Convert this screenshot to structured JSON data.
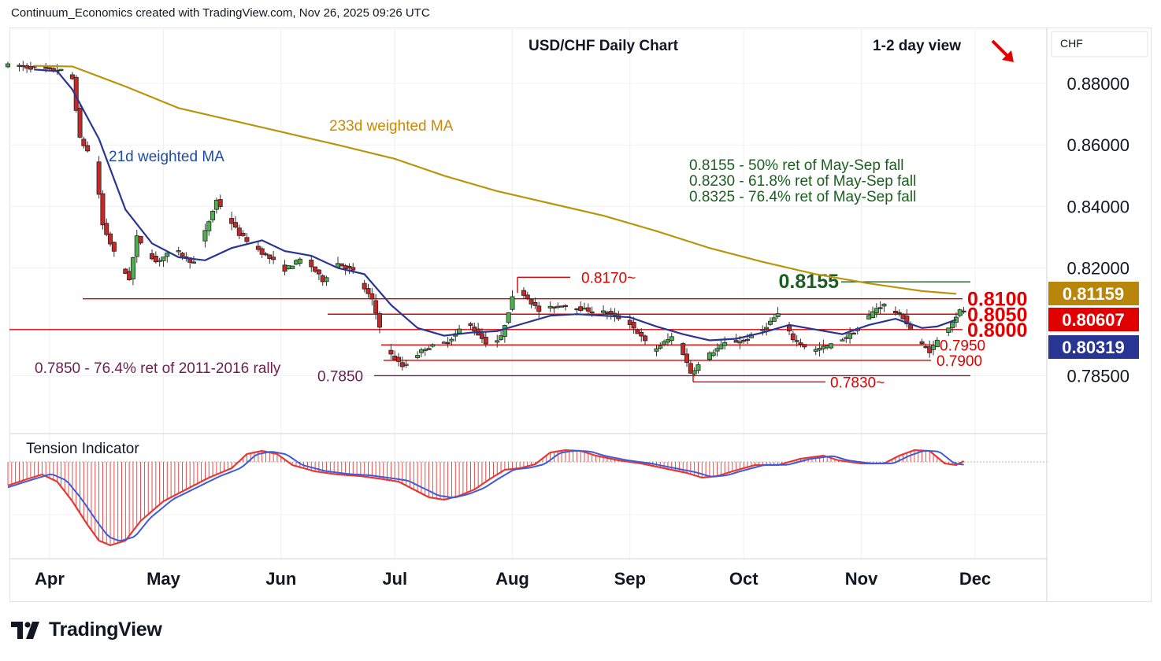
{
  "header": "Continuum_Economics created with TradingView.com, Nov 26, 2025 09:26 UTC",
  "brand": "TradingView",
  "chart_data": {
    "type": "candlestick",
    "title": "USD/CHF Daily Chart",
    "subtitle": "1-2 day view",
    "currency": "CHF",
    "view_direction": "down",
    "y_ticks": [
      "0.88000",
      "0.86000",
      "0.84000",
      "0.82000",
      "0.78500"
    ],
    "ylim": [
      0.7767,
      0.8903
    ],
    "x_ticks": [
      "Apr",
      "May",
      "Jun",
      "Jul",
      "Aug",
      "Sep",
      "Oct",
      "Nov",
      "Dec"
    ],
    "price_tags": [
      {
        "label": "0.81159",
        "color": "#b8860b"
      },
      {
        "label": "0.80607",
        "color": "#e00000"
      },
      {
        "label": "0.80319",
        "color": "#283593"
      }
    ],
    "annotations": {
      "ma233": "233d weighted MA",
      "ma21": "21d weighted MA",
      "ret50": "0.8155 - 50% ret of May-Sep fall",
      "ret618": "0.8230 - 61.8% ret of May-Sep fall",
      "ret764": "0.8325 - 76.4% ret of May-Sep fall",
      "rally": "0.7850 - 76.4% ret of 2011-2016 rally",
      "indicator": "Tension Indicator"
    },
    "levels": [
      {
        "value": 0.8155,
        "label": "0.8155",
        "color": "#1b5e20"
      },
      {
        "value": 0.817,
        "label": "0.8170~",
        "color": "#e00000"
      },
      {
        "value": 0.81,
        "label": "0.8100",
        "color": "#e00000"
      },
      {
        "value": 0.805,
        "label": "0.8050",
        "color": "#e00000"
      },
      {
        "value": 0.8,
        "label": "0.8000",
        "color": "#e00000"
      },
      {
        "value": 0.795,
        "label": "0.7950",
        "color": "#e00000"
      },
      {
        "value": 0.79,
        "label": "0.7900",
        "color": "#e00000"
      },
      {
        "value": 0.785,
        "label": "0.7850",
        "color": "#6b1f4f"
      },
      {
        "value": 0.783,
        "label": "0.7830~",
        "color": "#e00000"
      }
    ],
    "series": [
      {
        "name": "233d weighted MA",
        "color": "#b8960b",
        "points": [
          [
            "Mar 28",
            0.8857
          ],
          [
            "Apr 7",
            0.8855
          ],
          [
            "Apr 21",
            0.879
          ],
          [
            "May 5",
            0.872
          ],
          [
            "May 19",
            0.868
          ],
          [
            "Jun 2",
            0.864
          ],
          [
            "Jun 16",
            0.86
          ],
          [
            "Jul 1",
            0.8555
          ],
          [
            "Jul 14",
            0.85
          ],
          [
            "Jul 28",
            0.845
          ],
          [
            "Aug 11",
            0.841
          ],
          [
            "Aug 25",
            0.837
          ],
          [
            "Sep 8",
            0.832
          ],
          [
            "Sep 22",
            0.8265
          ],
          [
            "Oct 6",
            0.822
          ],
          [
            "Oct 20",
            0.818
          ],
          [
            "Nov 3",
            0.815
          ],
          [
            "Nov 17",
            0.8125
          ],
          [
            "Nov 26",
            0.8116
          ]
        ]
      },
      {
        "name": "21d weighted MA",
        "color": "#283593",
        "points": [
          [
            "Mar 28",
            0.8845
          ],
          [
            "Apr 3",
            0.884
          ],
          [
            "Apr 7",
            0.878
          ],
          [
            "Apr 14",
            0.862
          ],
          [
            "Apr 21",
            0.839
          ],
          [
            "Apr 28",
            0.828
          ],
          [
            "May 5",
            0.8235
          ],
          [
            "May 12",
            0.8225
          ],
          [
            "May 19",
            0.8265
          ],
          [
            "May 27",
            0.829
          ],
          [
            "Jun 2",
            0.8255
          ],
          [
            "Jun 9",
            0.824
          ],
          [
            "Jun 16",
            0.82
          ],
          [
            "Jun 23",
            0.818
          ],
          [
            "Jun 30",
            0.808
          ],
          [
            "Jul 7",
            0.8005
          ],
          [
            "Jul 14",
            0.798
          ],
          [
            "Jul 21",
            0.799
          ],
          [
            "Jul 28",
            0.7995
          ],
          [
            "Aug 4",
            0.802
          ],
          [
            "Aug 11",
            0.8045
          ],
          [
            "Aug 18",
            0.805
          ],
          [
            "Aug 25",
            0.8045
          ],
          [
            "Sep 1",
            0.804
          ],
          [
            "Sep 8",
            0.801
          ],
          [
            "Sep 15",
            0.7985
          ],
          [
            "Sep 22",
            0.7965
          ],
          [
            "Sep 29",
            0.797
          ],
          [
            "Oct 6",
            0.799
          ],
          [
            "Oct 13",
            0.8015
          ],
          [
            "Oct 20",
            0.8
          ],
          [
            "Oct 27",
            0.7985
          ],
          [
            "Nov 3",
            0.8015
          ],
          [
            "Nov 10",
            0.8035
          ],
          [
            "Nov 17",
            0.8005
          ],
          [
            "Nov 21",
            0.801
          ],
          [
            "Nov 26",
            0.8032
          ]
        ]
      }
    ]
  }
}
